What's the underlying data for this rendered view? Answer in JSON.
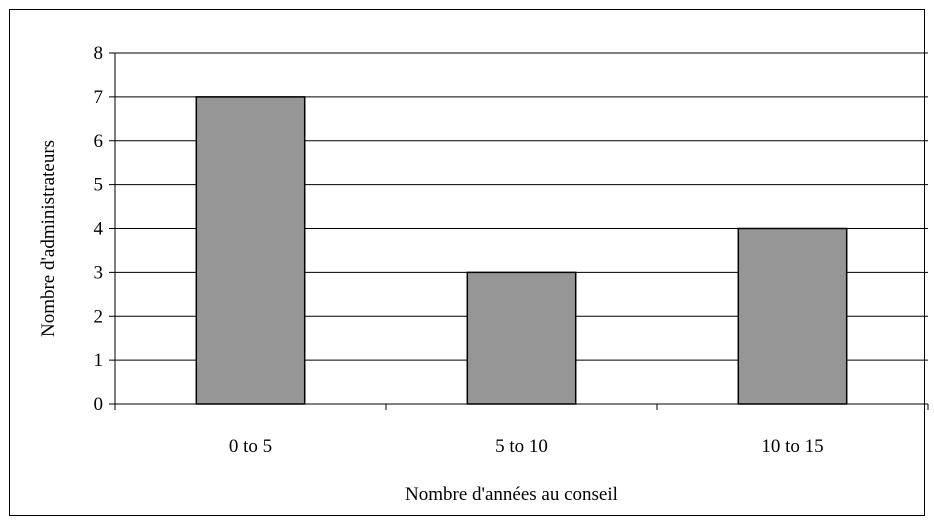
{
  "chart_data": {
    "type": "bar",
    "categories": [
      "0 to 5",
      "5 to 10",
      "10 to 15"
    ],
    "values": [
      7,
      3,
      4
    ],
    "title": "",
    "xlabel": "Nombre d'années au conseil",
    "ylabel": "Nombre d'administrateurs",
    "ylim": [
      0,
      8
    ],
    "yticks": [
      0,
      1,
      2,
      3,
      4,
      5,
      6,
      7,
      8
    ],
    "grid": true,
    "legend": "none",
    "colors": {
      "bar_fill": "#969696",
      "bar_stroke": "#000000",
      "gridline": "#000000",
      "axis": "#000000"
    }
  }
}
